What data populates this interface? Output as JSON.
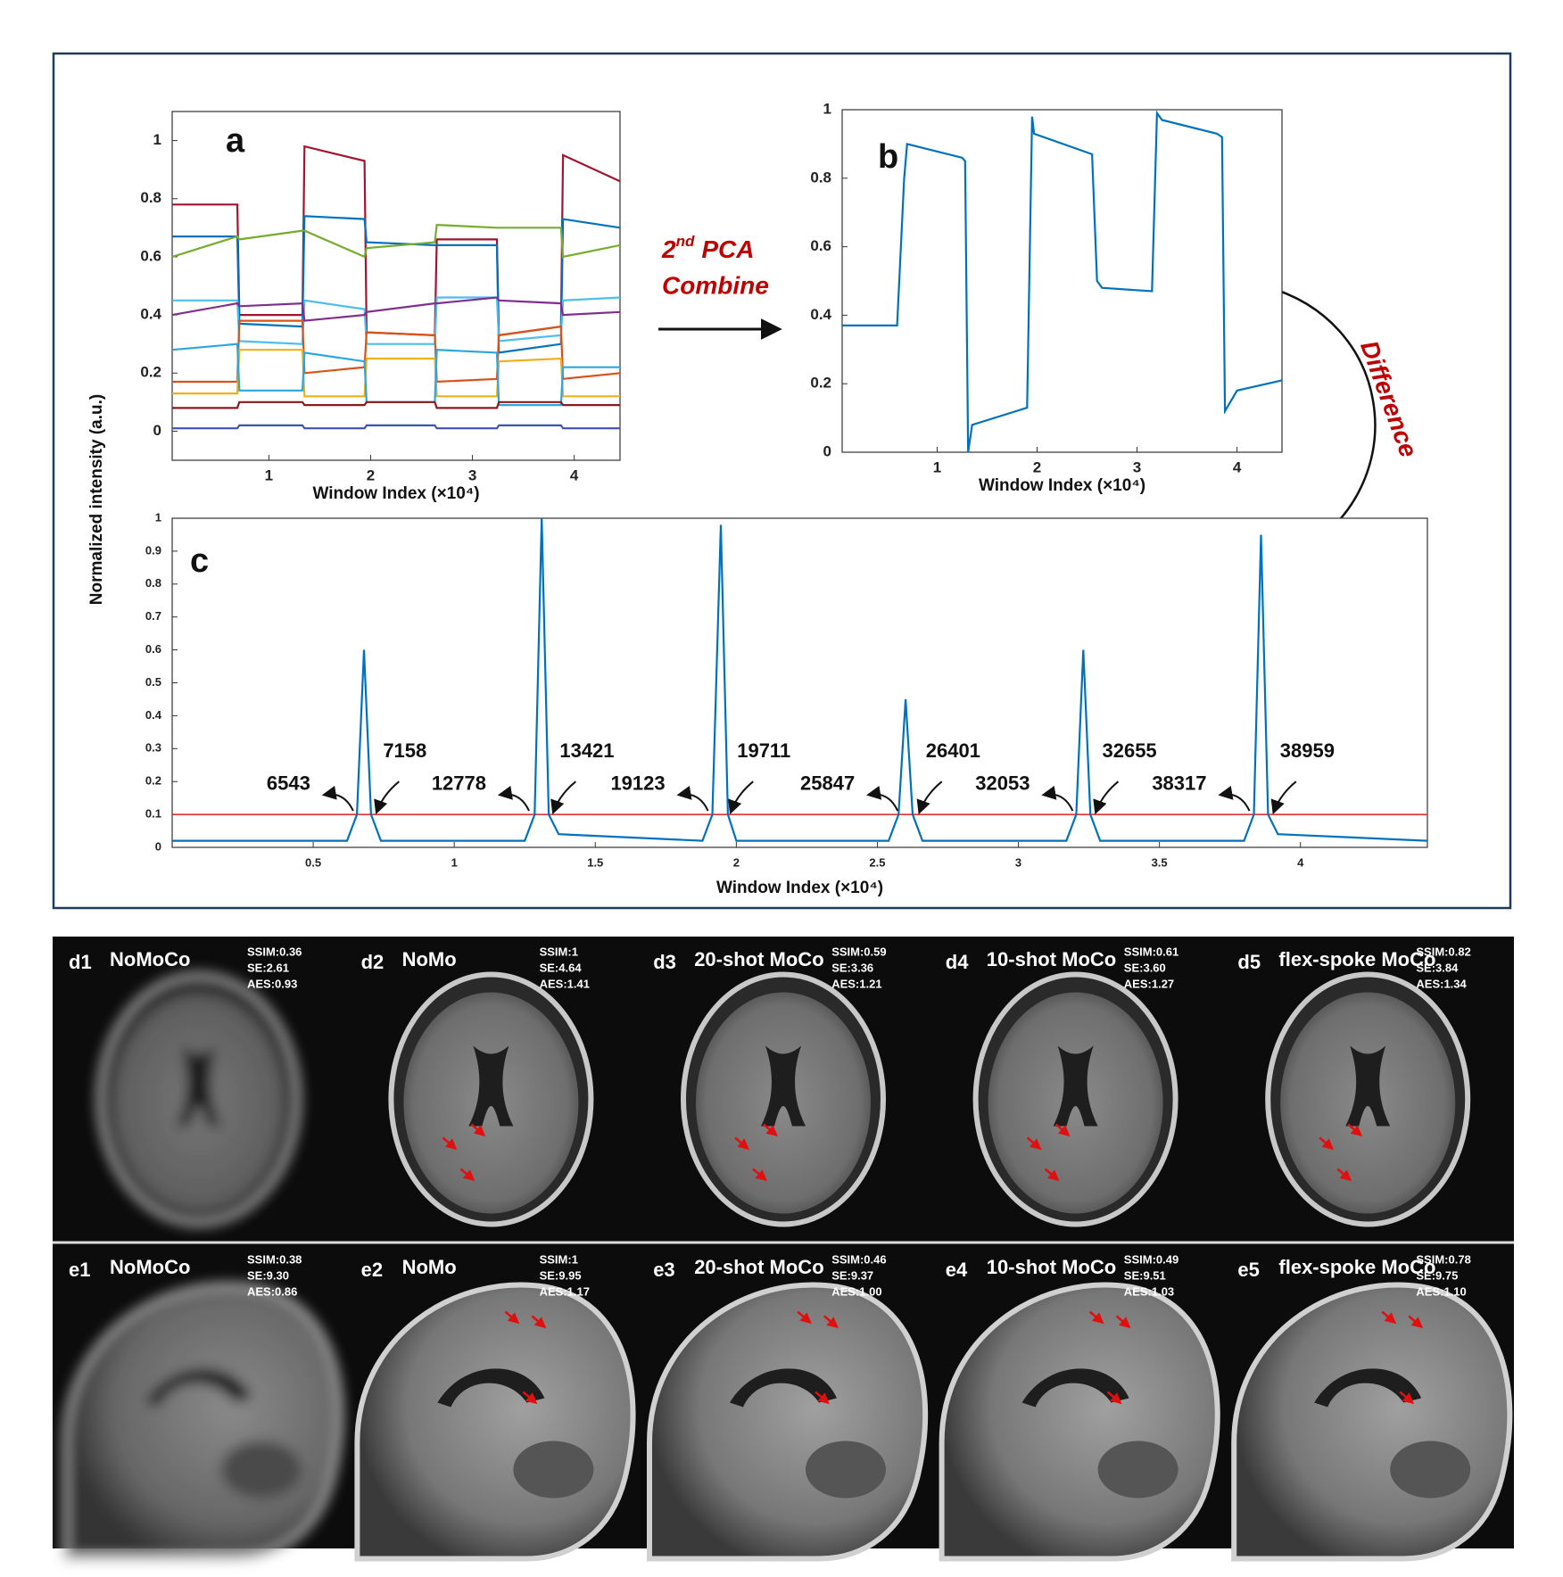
{
  "chart_data": [
    {
      "type": "line",
      "label": "a",
      "xlabel": "Window Index (×10⁴)",
      "ylabel": "Normalized intensity (a.u.)",
      "xlim": [
        0.05,
        4.45
      ],
      "ylim": [
        -0.1,
        1.1
      ],
      "xticks": [
        1,
        2,
        3,
        4
      ],
      "yticks": [
        0,
        0.2,
        0.4,
        0.6,
        0.8,
        1
      ],
      "x": [
        0.05,
        0.69,
        0.71,
        1.33,
        1.35,
        1.94,
        1.96,
        2.63,
        2.65,
        3.24,
        3.26,
        3.87,
        3.89,
        4.45
      ],
      "series": [
        {
          "color": "#a2142f",
          "values": [
            0.78,
            0.78,
            0.4,
            0.4,
            0.98,
            0.93,
            0.34,
            0.33,
            0.66,
            0.66,
            0.33,
            0.36,
            0.95,
            0.86
          ]
        },
        {
          "color": "#0072bd",
          "values": [
            0.67,
            0.67,
            0.37,
            0.36,
            0.74,
            0.73,
            0.65,
            0.64,
            0.64,
            0.64,
            0.27,
            0.3,
            0.73,
            0.7
          ]
        },
        {
          "color": "#77ac30",
          "values": [
            0.6,
            0.67,
            0.66,
            0.69,
            0.69,
            0.6,
            0.63,
            0.65,
            0.71,
            0.7,
            0.7,
            0.7,
            0.6,
            0.64
          ]
        },
        {
          "color": "#4dbeee",
          "values": [
            0.45,
            0.45,
            0.31,
            0.3,
            0.45,
            0.42,
            0.3,
            0.3,
            0.46,
            0.46,
            0.31,
            0.33,
            0.45,
            0.46
          ]
        },
        {
          "color": "#7e2f8e",
          "values": [
            0.4,
            0.44,
            0.43,
            0.44,
            0.38,
            0.4,
            0.41,
            0.44,
            0.44,
            0.46,
            0.45,
            0.44,
            0.4,
            0.41
          ]
        },
        {
          "color": "#d95319",
          "values": [
            0.17,
            0.17,
            0.38,
            0.38,
            0.2,
            0.22,
            0.34,
            0.33,
            0.17,
            0.18,
            0.33,
            0.36,
            0.18,
            0.2
          ]
        },
        {
          "color": "#edb120",
          "values": [
            0.13,
            0.13,
            0.28,
            0.28,
            0.12,
            0.12,
            0.25,
            0.25,
            0.12,
            0.12,
            0.24,
            0.25,
            0.12,
            0.12
          ]
        },
        {
          "color": "#2ca6e0",
          "values": [
            0.28,
            0.3,
            0.14,
            0.14,
            0.27,
            0.24,
            0.1,
            0.1,
            0.28,
            0.27,
            0.09,
            0.09,
            0.22,
            0.22
          ]
        },
        {
          "color": "#8b1a1a",
          "values": [
            0.08,
            0.08,
            0.1,
            0.1,
            0.09,
            0.09,
            0.1,
            0.1,
            0.08,
            0.08,
            0.1,
            0.1,
            0.09,
            0.09
          ]
        },
        {
          "color": "#3f51b5",
          "values": [
            0.01,
            0.01,
            0.02,
            0.02,
            0.01,
            0.01,
            0.02,
            0.02,
            0.01,
            0.01,
            0.02,
            0.02,
            0.01,
            0.01
          ]
        }
      ]
    },
    {
      "type": "line",
      "label": "b",
      "xlabel": "Window Index (×10⁴)",
      "xlim": [
        0.05,
        4.45
      ],
      "ylim": [
        0,
        1
      ],
      "xticks": [
        1,
        2,
        3,
        4
      ],
      "yticks": [
        0,
        0.2,
        0.4,
        0.6,
        0.8,
        1
      ],
      "x": [
        0.05,
        0.6,
        0.67,
        0.7,
        1.25,
        1.28,
        1.31,
        1.35,
        1.9,
        1.95,
        1.97,
        2.55,
        2.6,
        2.65,
        3.15,
        3.2,
        3.25,
        3.8,
        3.85,
        3.88,
        4.0,
        4.45
      ],
      "series": [
        {
          "color": "#0072bd",
          "values": [
            0.37,
            0.37,
            0.8,
            0.9,
            0.86,
            0.85,
            0.0,
            0.08,
            0.13,
            0.98,
            0.93,
            0.87,
            0.5,
            0.48,
            0.47,
            0.99,
            0.97,
            0.93,
            0.92,
            0.12,
            0.18,
            0.21
          ]
        }
      ]
    },
    {
      "type": "line",
      "label": "c",
      "xlabel": "Window Index (×10⁴)",
      "xlim": [
        0,
        4.45
      ],
      "ylim": [
        0,
        1
      ],
      "xticks": [
        0.5,
        1,
        1.5,
        2,
        2.5,
        3,
        3.5,
        4
      ],
      "yticks": [
        0,
        0.1,
        0.2,
        0.3,
        0.4,
        0.5,
        0.6,
        0.7,
        0.8,
        0.9,
        1
      ],
      "x": [
        0,
        0.62,
        0.655,
        0.68,
        0.705,
        0.74,
        1.25,
        1.285,
        1.31,
        1.335,
        1.37,
        1.88,
        1.915,
        1.945,
        1.97,
        2.0,
        2.54,
        2.575,
        2.6,
        2.625,
        2.66,
        3.17,
        3.205,
        3.23,
        3.255,
        3.29,
        3.8,
        3.835,
        3.86,
        3.885,
        3.92,
        4.45
      ],
      "series": [
        {
          "color": "#0072bd",
          "values": [
            0.02,
            0.02,
            0.1,
            0.6,
            0.1,
            0.02,
            0.02,
            0.1,
            1.0,
            0.1,
            0.04,
            0.02,
            0.1,
            0.98,
            0.1,
            0.02,
            0.02,
            0.1,
            0.45,
            0.1,
            0.02,
            0.02,
            0.1,
            0.6,
            0.1,
            0.02,
            0.02,
            0.1,
            0.95,
            0.1,
            0.04,
            0.02
          ]
        }
      ],
      "threshold": 0.1,
      "threshold_color": "#e02020",
      "annotations": [
        6543,
        7158,
        12778,
        13421,
        19123,
        19711,
        25847,
        26401,
        32053,
        32655,
        38317,
        38959
      ]
    }
  ],
  "flow": {
    "combine": [
      "2",
      "nd",
      "PCA",
      "Combine"
    ],
    "difference": "Difference"
  },
  "panels": [
    [
      {
        "id": "d1",
        "title": "NoMoCo",
        "metrics": [
          "SSIM:0.36",
          "SE:2.61",
          "AES:0.93"
        ]
      },
      {
        "id": "d2",
        "title": "NoMo",
        "metrics": [
          "SSIM:1",
          "SE:4.64",
          "AES:1.41"
        ]
      },
      {
        "id": "d3",
        "title": "20-shot MoCo",
        "metrics": [
          "SSIM:0.59",
          "SE:3.36",
          "AES:1.21"
        ]
      },
      {
        "id": "d4",
        "title": "10-shot MoCo",
        "metrics": [
          "SSIM:0.61",
          "SE:3.60",
          "AES:1.27"
        ]
      },
      {
        "id": "d5",
        "title": "flex-spoke MoCo",
        "metrics": [
          "SSIM:0.82",
          "SE:3.84",
          "AES:1.34"
        ]
      }
    ],
    [
      {
        "id": "e1",
        "title": "NoMoCo",
        "metrics": [
          "SSIM:0.38",
          "SE:9.30",
          "AES:0.86"
        ]
      },
      {
        "id": "e2",
        "title": "NoMo",
        "metrics": [
          "SSIM:1",
          "SE:9.95",
          "AES:1.17"
        ]
      },
      {
        "id": "e3",
        "title": "20-shot MoCo",
        "metrics": [
          "SSIM:0.46",
          "SE:9.37",
          "AES:1.00"
        ]
      },
      {
        "id": "e4",
        "title": "10-shot MoCo",
        "metrics": [
          "SSIM:0.49",
          "SE:9.51",
          "AES:1.03"
        ]
      },
      {
        "id": "e5",
        "title": "flex-spoke MoCo",
        "metrics": [
          "SSIM:0.78",
          "SE:9.75",
          "AES:1.10"
        ]
      }
    ]
  ]
}
